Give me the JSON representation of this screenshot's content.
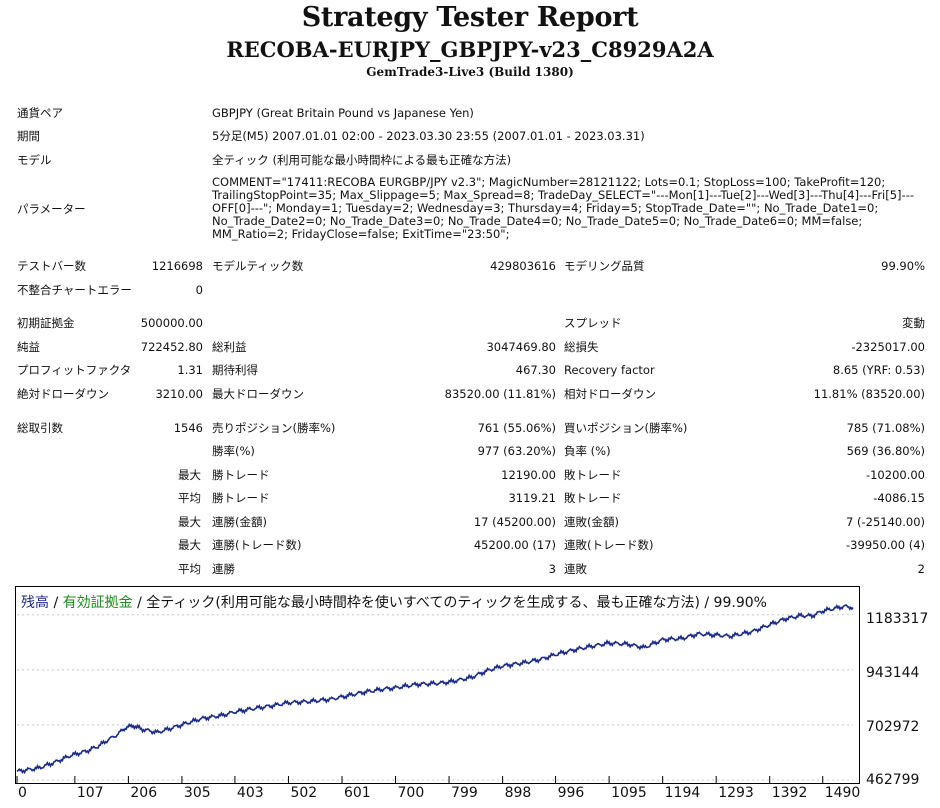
{
  "header": {
    "title": "Strategy Tester Report",
    "subtitle": "RECOBA-EURJPY_GBPJPY-v23_C8929A2A",
    "build": "GemTrade3-Live3 (Build 1380)"
  },
  "info": {
    "pair_label": "通貨ペア",
    "pair_value": "GBPJPY (Great Britain Pound vs Japanese Yen)",
    "period_label": "期間",
    "period_value": "5分足(M5) 2007.01.01 02:00 - 2023.03.30 23:55 (2007.01.01 - 2023.03.31)",
    "model_label": "モデル",
    "model_value": "全ティック (利用可能な最小時間枠による最も正確な方法)",
    "params_label": "パラメーター",
    "params_value": "COMMENT=\"17411:RECOBA EURGBP/JPY v2.3\"; MagicNumber=28121122; Lots=0.1; StopLoss=100; TakeProfit=120; TrailingStopPoint=35; Max_Slippage=5; Max_Spread=8; TradeDay_SELECT=\"---Mon[1]---Tue[2]---Wed[3]---Thu[4]---Fri[5]---OFF[0]---\"; Monday=1; Tuesday=2; Wednesday=3; Thursday=4; Friday=5; StopTrade_Date=\"\"; No_Trade_Date1=0; No_Trade_Date2=0; No_Trade_Date3=0; No_Trade_Date4=0; No_Trade_Date5=0; No_Trade_Date6=0; MM=false; MM_Ratio=2; FridayClose=false; ExitTime=\"23:50\";"
  },
  "bars": {
    "testbars_label": "テストバー数",
    "testbars_value": "1216698",
    "ticks_label": "モデルティック数",
    "ticks_value": "429803616",
    "quality_label": "モデリング品質",
    "quality_value": "99.90%",
    "errors_label": "不整合チャートエラー",
    "errors_value": "0"
  },
  "stats": {
    "deposit_label": "初期証拠金",
    "deposit_value": "500000.00",
    "spread_label": "スプレッド",
    "spread_value": "変動",
    "net_label": "純益",
    "net_value": "722452.80",
    "gross_profit_label": "総利益",
    "gross_profit_value": "3047469.80",
    "gross_loss_label": "総損失",
    "gross_loss_value": "-2325017.00",
    "pf_label": "プロフィットファクタ",
    "pf_value": "1.31",
    "expected_label": "期待利得",
    "expected_value": "467.30",
    "recovery_label": "Recovery factor",
    "recovery_value": "8.65 (YRF: 0.53)",
    "abs_dd_label": "絶対ドローダウン",
    "abs_dd_value": "3210.00",
    "max_dd_label": "最大ドローダウン",
    "max_dd_value": "83520.00 (11.81%)",
    "rel_dd_label": "相対ドローダウン",
    "rel_dd_value": "11.81% (83520.00)",
    "total_trades_label": "総取引数",
    "total_trades_value": "1546",
    "short_label": "売りポジション(勝率%)",
    "short_value": "761 (55.06%)",
    "long_label": "買いポジション(勝率%)",
    "long_value": "785 (71.08%)",
    "win_rate_label": "勝率(%)",
    "win_rate_value": "977 (63.20%)",
    "loss_rate_label": "負率 (%)",
    "loss_rate_value": "569 (36.80%)",
    "max_prefix": "最大",
    "avg_prefix": "平均",
    "largest_win_label": "勝トレード",
    "largest_win_value": "12190.00",
    "largest_loss_label": "敗トレード",
    "largest_loss_value": "-10200.00",
    "avg_win_label": "勝トレード",
    "avg_win_value": "3119.21",
    "avg_loss_label": "敗トレード",
    "avg_loss_value": "-4086.15",
    "max_consec_wins_money_label": "連勝(金額)",
    "max_consec_wins_money_value": "17 (45200.00)",
    "max_consec_losses_money_label": "連敗(金額)",
    "max_consec_losses_money_value": "7 (-25140.00)",
    "max_consec_wins_count_label": "連勝(トレード数)",
    "max_consec_wins_count_value": "45200.00 (17)",
    "max_consec_losses_count_label": "連敗(トレード数)",
    "max_consec_losses_count_value": "-39950.00 (4)",
    "avg_consec_wins_label": "連勝",
    "avg_consec_wins_value": "3",
    "avg_consec_losses_label": "連敗",
    "avg_consec_losses_value": "2"
  },
  "legend": {
    "balance": "残高",
    "sep1": " / ",
    "equity": "有効証拠金",
    "rest": " / 全ティック(利用可能な最小時間枠を使いすべてのティックを生成する、最も正確な方法) / 99.90%"
  },
  "colors": {
    "balance_line": "#1a2a8a",
    "equity_text": "#1e8a1e",
    "grid": "#c8c8c8"
  },
  "chart_data": {
    "type": "line",
    "title": "",
    "xlabel": "",
    "ylabel": "",
    "xlim": [
      0,
      1546
    ],
    "ylim": [
      462799,
      1300000
    ],
    "x_ticks": [
      "0",
      "107",
      "206",
      "305",
      "403",
      "502",
      "601",
      "700",
      "799",
      "898",
      "996",
      "1095",
      "1194",
      "1293",
      "1392",
      "1490"
    ],
    "y_ticks": [
      "1183317",
      "943144",
      "702972",
      "462799"
    ],
    "grid": true,
    "series": [
      {
        "values": [
          [
            0,
            500000
          ],
          [
            40,
            515000
          ],
          [
            70,
            540000
          ],
          [
            100,
            570000
          ],
          [
            130,
            590000
          ],
          [
            150,
            610000
          ],
          [
            170,
            640000
          ],
          [
            185,
            660000
          ],
          [
            200,
            690000
          ],
          [
            215,
            700000
          ],
          [
            230,
            685000
          ],
          [
            260,
            670000
          ],
          [
            300,
            700000
          ],
          [
            340,
            730000
          ],
          [
            380,
            745000
          ],
          [
            403,
            760000
          ],
          [
            440,
            775000
          ],
          [
            480,
            790000
          ],
          [
            502,
            800000
          ],
          [
            540,
            805000
          ],
          [
            580,
            815000
          ],
          [
            601,
            825000
          ],
          [
            640,
            845000
          ],
          [
            680,
            860000
          ],
          [
            700,
            865000
          ],
          [
            740,
            880000
          ],
          [
            780,
            885000
          ],
          [
            799,
            890000
          ],
          [
            840,
            910000
          ],
          [
            870,
            940000
          ],
          [
            898,
            960000
          ],
          [
            940,
            975000
          ],
          [
            970,
            990000
          ],
          [
            996,
            1010000
          ],
          [
            1030,
            1030000
          ],
          [
            1060,
            1045000
          ],
          [
            1095,
            1060000
          ],
          [
            1130,
            1055000
          ],
          [
            1160,
            1040000
          ],
          [
            1194,
            1075000
          ],
          [
            1230,
            1080000
          ],
          [
            1260,
            1100000
          ],
          [
            1293,
            1095000
          ],
          [
            1320,
            1090000
          ],
          [
            1360,
            1110000
          ],
          [
            1392,
            1140000
          ],
          [
            1420,
            1165000
          ],
          [
            1450,
            1180000
          ],
          [
            1470,
            1178000
          ],
          [
            1490,
            1200000
          ],
          [
            1510,
            1210000
          ],
          [
            1530,
            1220000
          ],
          [
            1546,
            1215000
          ]
        ]
      }
    ]
  }
}
